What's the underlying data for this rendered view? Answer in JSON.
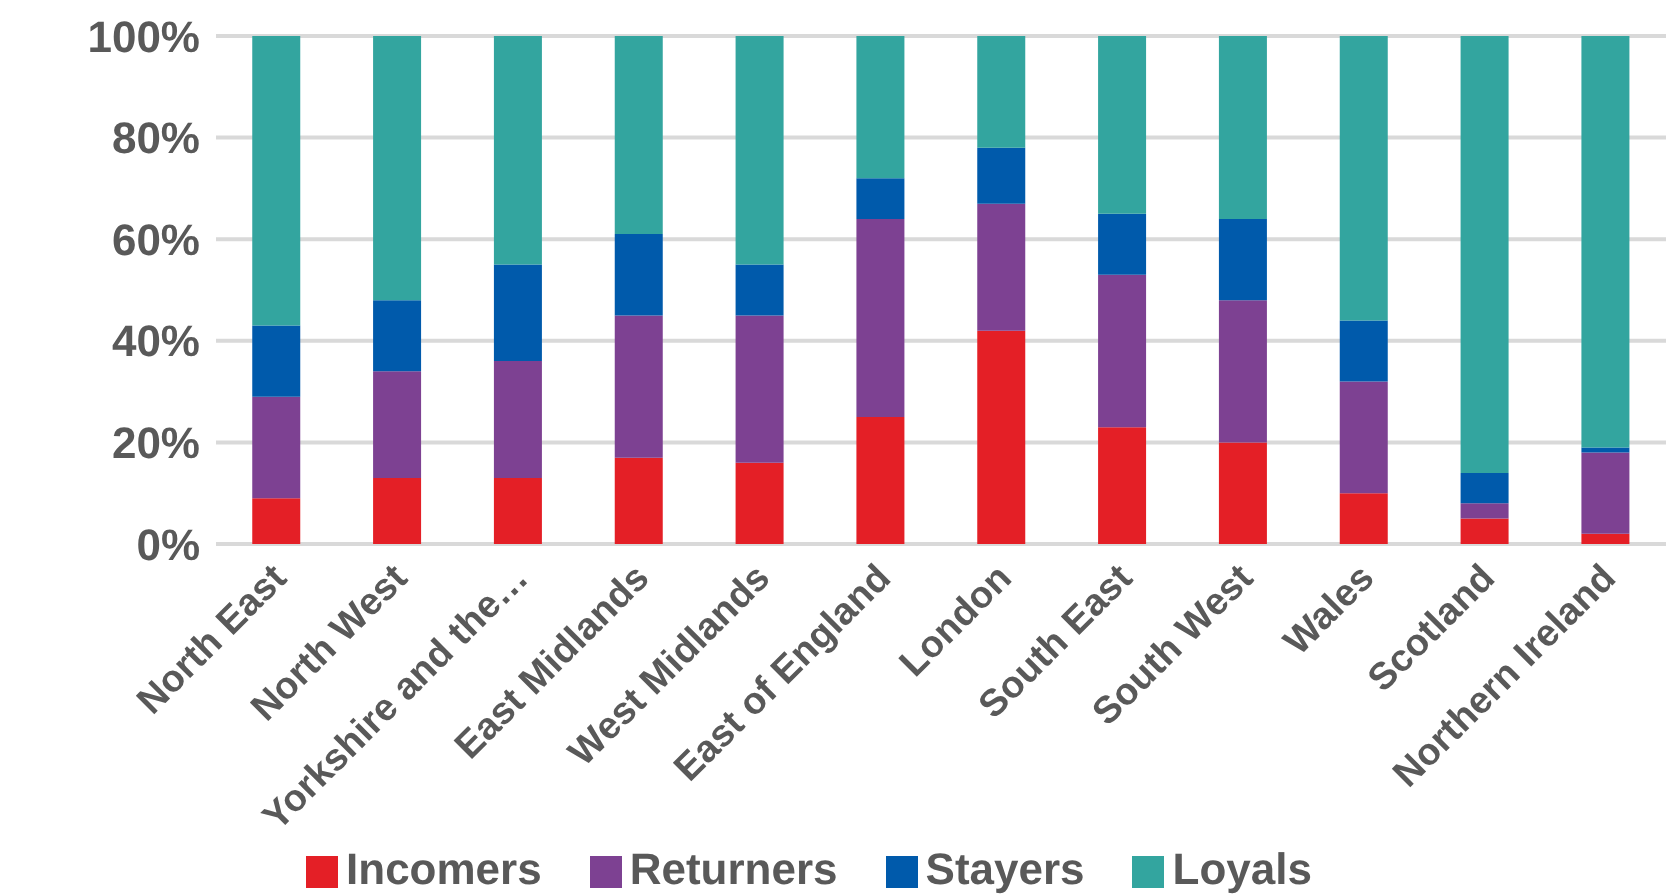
{
  "chart_data": {
    "type": "bar",
    "stacked": true,
    "categories": [
      "North East",
      "North West",
      "Yorkshire and the…",
      "East Midlands",
      "West Midlands",
      "East of England",
      "London",
      "South East",
      "South West",
      "Wales",
      "Scotland",
      "Northern Ireland"
    ],
    "series": [
      {
        "name": "Incomers",
        "color": "#e41f26",
        "values": [
          9,
          13,
          13,
          17,
          16,
          25,
          42,
          23,
          20,
          10,
          5,
          2
        ]
      },
      {
        "name": "Returners",
        "color": "#7d4192",
        "values": [
          20,
          21,
          23,
          28,
          29,
          39,
          25,
          30,
          28,
          22,
          3,
          16
        ]
      },
      {
        "name": "Stayers",
        "color": "#005aab",
        "values": [
          14,
          14,
          19,
          16,
          10,
          8,
          11,
          12,
          16,
          12,
          6,
          1
        ]
      },
      {
        "name": "Loyals",
        "color": "#33a59f",
        "values": [
          57,
          52,
          45,
          39,
          45,
          28,
          22,
          35,
          36,
          56,
          86,
          81
        ]
      }
    ],
    "ylim": [
      0,
      100
    ],
    "yticks": [
      {
        "value": 0,
        "label": "0%"
      },
      {
        "value": 20,
        "label": "20%"
      },
      {
        "value": 40,
        "label": "40%"
      },
      {
        "value": 60,
        "label": "60%"
      },
      {
        "value": 80,
        "label": "80%"
      },
      {
        "value": 100,
        "label": "100%"
      }
    ],
    "grid": "y",
    "legend": "bottom"
  }
}
